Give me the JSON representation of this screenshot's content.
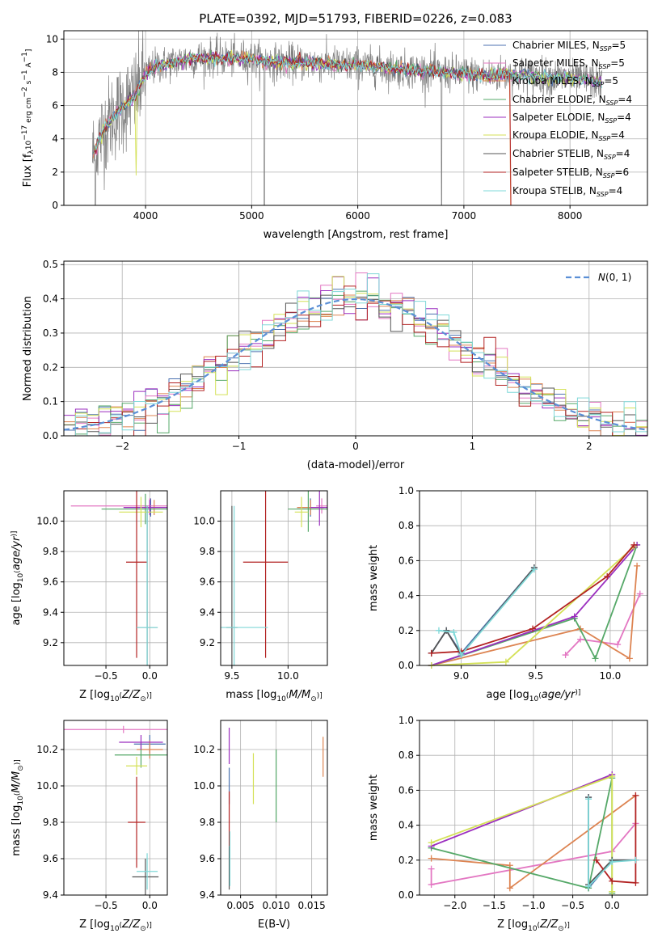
{
  "figure": {
    "title": "PLATE=0392, MJD=51793, FIBERID=0226, z=0.083"
  },
  "colors": {
    "chab_miles": "#4c72b0",
    "salp_miles": "#e377c2",
    "krou_miles": "#dd8452",
    "chab_elodie": "#55a868",
    "salp_elodie": "#9b2fbf",
    "krou_elodie": "#d4e157",
    "chab_stelib": "#555555",
    "salp_stelib": "#b22222",
    "krou_stelib": "#7fd8d8",
    "data": "#808080",
    "gauss": "#5b8fd6",
    "grid": "#b0b0b0"
  },
  "legend_spectrum": [
    "Chabrier MILES, N<sub>SSP</sub>=5",
    "Salpeter MILES, N<sub>SSP</sub>=5",
    "Kroupa MILES, N<sub>SSP</sub>=5",
    "Chabrier ELODIE, N<sub>SSP</sub>=4",
    "Salpeter ELODIE, N<sub>SSP</sub>=4",
    "Kroupa ELODIE, N<sub>SSP</sub>=4",
    "Chabrier STELIB, N<sub>SSP</sub>=4",
    "Salpeter STELIB, N<sub>SSP</sub>=6",
    "Kroupa STELIB, N<sub>SSP</sub>=4"
  ],
  "legend_labels": {
    "l0": "Chabrier MILES, N",
    "l1": "Salpeter MILES, N",
    "l2": "Kroupa MILES, N",
    "l3": "Chabrier ELODIE, N",
    "l4": "Salpeter ELODIE, N",
    "l5": "Kroupa ELODIE, N",
    "l6": "Chabrier STELIB, N",
    "l7": "Salpeter STELIB, N",
    "l8": "Kroupa STELIB, N",
    "sub": "SSP",
    "n0": "=5",
    "n1": "=5",
    "n2": "=5",
    "n3": "=4",
    "n4": "=4",
    "n5": "=4",
    "n6": "=4",
    "n7": "=6",
    "n8": "=4"
  },
  "chart_data": [
    {
      "id": "spectrum",
      "type": "line",
      "xlabel": "wavelength [Angstrom, rest frame]",
      "ylabel": "Flux [f_λ 10^-17 erg cm^-2 s^-1 A^-1]",
      "xlim": [
        3230,
        8730
      ],
      "ylim": [
        0,
        10.5
      ],
      "xticks": [
        4000,
        5000,
        6000,
        7000,
        8000
      ],
      "yticks": [
        0,
        2,
        4,
        6,
        8,
        10
      ],
      "continuum": [
        [
          3500,
          3.0
        ],
        [
          3600,
          4.5
        ],
        [
          3700,
          5.4
        ],
        [
          3800,
          6.0
        ],
        [
          3900,
          6.6
        ],
        [
          4000,
          7.9
        ],
        [
          4100,
          8.4
        ],
        [
          4200,
          8.5
        ],
        [
          4400,
          8.8
        ],
        [
          4600,
          8.9
        ],
        [
          4800,
          8.85
        ],
        [
          5000,
          8.8
        ],
        [
          5200,
          8.6
        ],
        [
          5400,
          8.6
        ],
        [
          5600,
          8.55
        ],
        [
          5800,
          8.45
        ],
        [
          6000,
          8.4
        ],
        [
          6200,
          8.3
        ],
        [
          6400,
          8.2
        ],
        [
          6600,
          8.1
        ],
        [
          6800,
          8.0
        ],
        [
          7000,
          7.9
        ],
        [
          7200,
          7.8
        ],
        [
          7400,
          7.9
        ],
        [
          7600,
          7.8
        ],
        [
          7800,
          7.7
        ],
        [
          8000,
          7.6
        ],
        [
          8200,
          7.5
        ],
        [
          8300,
          7.4
        ]
      ],
      "grid": true,
      "legend_placement": "upper right"
    },
    {
      "id": "residuals",
      "type": "histogram",
      "xlabel": "(data-model)/error",
      "ylabel": "Normed distribution",
      "xlim": [
        -2.5,
        2.5
      ],
      "ylim": [
        0,
        0.51
      ],
      "xticks": [
        -2,
        -1,
        0,
        1,
        2
      ],
      "yticks": [
        0.0,
        0.1,
        0.2,
        0.3,
        0.4,
        0.5
      ],
      "bin_width": 0.1,
      "series_name": "N(0,1)",
      "grid": true,
      "legend_placement": "upper right"
    },
    {
      "id": "age_vs_Z",
      "type": "errorbar",
      "xlabel": "Z [log10(Z/Z⊙)]",
      "ylabel": "age [log10(age/yr)]",
      "xlim": [
        -0.98,
        0.2
      ],
      "ylim": [
        9.05,
        10.2
      ],
      "xticks": [
        -0.5,
        0.0
      ],
      "yticks": [
        9.2,
        9.4,
        9.6,
        9.8,
        10.0
      ],
      "points": [
        {
          "key": "chab_miles",
          "x": 0.01,
          "y": 10.09,
          "xerr": 0.3,
          "yerr": 0.06
        },
        {
          "key": "salp_miles",
          "x": 0.0,
          "y": 10.1,
          "xerr": 0.9,
          "yerr": 0.05
        },
        {
          "key": "krou_miles",
          "x": 0.05,
          "y": 10.09,
          "xerr": 0.12,
          "yerr": 0.05
        },
        {
          "key": "chab_elodie",
          "x": -0.05,
          "y": 10.08,
          "xerr": 0.5,
          "yerr": 0.1
        },
        {
          "key": "salp_elodie",
          "x": 0.0,
          "y": 10.09,
          "xerr": 0.3,
          "yerr": 0.05
        },
        {
          "key": "krou_elodie",
          "x": -0.1,
          "y": 10.06,
          "xerr": 0.25,
          "yerr": 0.1
        },
        {
          "key": "chab_stelib",
          "x": -0.03,
          "y": 9.3,
          "xerr": 0.12,
          "yerr": 0.8
        },
        {
          "key": "salp_stelib",
          "x": -0.15,
          "y": 9.73,
          "xerr": 0.12,
          "yerr": 0.63
        },
        {
          "key": "krou_stelib",
          "x": -0.03,
          "y": 9.3,
          "xerr": 0.12,
          "yerr": 0.8
        }
      ],
      "grid": true
    },
    {
      "id": "age_vs_mass",
      "type": "errorbar",
      "xlabel": "mass [log10(M/M⊙)]",
      "ylabel": "",
      "xlim": [
        9.4,
        10.35
      ],
      "ylim": [
        9.05,
        10.2
      ],
      "xticks": [
        9.5,
        10.0
      ],
      "yticks": [
        9.2,
        9.4,
        9.6,
        9.8,
        10.0
      ],
      "points": [
        {
          "key": "chab_miles",
          "x": 10.2,
          "y": 10.09,
          "xerr": 0.12,
          "yerr": 0.06
        },
        {
          "key": "salp_miles",
          "x": 10.3,
          "y": 10.1,
          "xerr": 0.05,
          "yerr": 0.05
        },
        {
          "key": "krou_miles",
          "x": 10.2,
          "y": 10.09,
          "xerr": 0.12,
          "yerr": 0.05
        },
        {
          "key": "chab_elodie",
          "x": 10.18,
          "y": 10.08,
          "xerr": 0.18,
          "yerr": 0.15
        },
        {
          "key": "salp_elodie",
          "x": 10.28,
          "y": 10.09,
          "xerr": 0.08,
          "yerr": 0.12
        },
        {
          "key": "krou_elodie",
          "x": 10.12,
          "y": 10.06,
          "xerr": 0.06,
          "yerr": 0.1
        },
        {
          "key": "chab_stelib",
          "x": 9.5,
          "y": 9.3,
          "xerr": 0.05,
          "yerr": 0.8
        },
        {
          "key": "salp_stelib",
          "x": 9.8,
          "y": 9.73,
          "xerr": 0.2,
          "yerr": 0.63
        },
        {
          "key": "krou_stelib",
          "x": 9.52,
          "y": 9.3,
          "xerr": 0.3,
          "yerr": 0.8
        }
      ],
      "grid": true
    },
    {
      "id": "weight_vs_age",
      "type": "line",
      "xlabel": "age [log10(age/yr)]",
      "ylabel": "mass weight",
      "xlim": [
        8.72,
        10.25
      ],
      "ylim": [
        0,
        1.0
      ],
      "xticks": [
        9.0,
        9.5,
        10.0
      ],
      "yticks": [
        0.0,
        0.2,
        0.4,
        0.6,
        0.8,
        1.0
      ],
      "series": [
        {
          "key": "chab_miles",
          "points": [
            [
              8.8,
              0.07
            ],
            [
              8.9,
              0.2
            ],
            [
              9.0,
              0.07
            ],
            [
              9.49,
              0.56
            ]
          ]
        },
        {
          "key": "salp_miles",
          "points": [
            [
              9.7,
              0.06
            ],
            [
              9.8,
              0.15
            ],
            [
              10.05,
              0.12
            ],
            [
              10.2,
              0.41
            ]
          ]
        },
        {
          "key": "krou_miles",
          "points": [
            [
              8.8,
              0.0
            ],
            [
              9.8,
              0.21
            ],
            [
              10.13,
              0.04
            ],
            [
              10.18,
              0.57
            ]
          ]
        },
        {
          "key": "chab_elodie",
          "points": [
            [
              8.8,
              0.0
            ],
            [
              9.76,
              0.27
            ],
            [
              9.9,
              0.04
            ],
            [
              10.18,
              0.69
            ]
          ]
        },
        {
          "key": "salp_elodie",
          "points": [
            [
              8.8,
              0.0
            ],
            [
              9.76,
              0.28
            ],
            [
              10.18,
              0.69
            ]
          ]
        },
        {
          "key": "krou_elodie",
          "points": [
            [
              8.8,
              0.0
            ],
            [
              9.3,
              0.02
            ],
            [
              10.16,
              0.68
            ]
          ]
        },
        {
          "key": "chab_stelib",
          "points": [
            [
              8.8,
              0.07
            ],
            [
              8.9,
              0.2
            ],
            [
              9.0,
              0.06
            ],
            [
              9.49,
              0.56
            ]
          ]
        },
        {
          "key": "salp_stelib",
          "points": [
            [
              8.8,
              0.07
            ],
            [
              9.0,
              0.08
            ],
            [
              9.48,
              0.21
            ],
            [
              9.98,
              0.51
            ],
            [
              10.16,
              0.69
            ]
          ]
        },
        {
          "key": "krou_stelib",
          "points": [
            [
              8.85,
              0.2
            ],
            [
              8.95,
              0.19
            ],
            [
              9.0,
              0.06
            ],
            [
              9.49,
              0.55
            ]
          ]
        }
      ],
      "grid": true
    },
    {
      "id": "mass_vs_Z",
      "type": "errorbar",
      "xlabel": "Z [log10(Z/Z⊙)]",
      "ylabel": "mass [log10(M/M⊙)]",
      "xlim": [
        -0.98,
        0.2
      ],
      "ylim": [
        9.4,
        10.36
      ],
      "xticks": [
        -0.5,
        0.0
      ],
      "yticks": [
        9.4,
        9.6,
        9.8,
        10.0,
        10.2
      ],
      "points": [
        {
          "key": "chab_miles",
          "x": 0.0,
          "y": 10.23,
          "xerr": 0.18,
          "yerr": 0.05
        },
        {
          "key": "salp_miles",
          "x": -0.3,
          "y": 10.31,
          "xerr": 0.9,
          "yerr": 0.02
        },
        {
          "key": "krou_miles",
          "x": 0.0,
          "y": 10.2,
          "xerr": 0.15,
          "yerr": 0.05
        },
        {
          "key": "chab_elodie",
          "x": -0.1,
          "y": 10.17,
          "xerr": 0.3,
          "yerr": 0.07
        },
        {
          "key": "salp_elodie",
          "x": -0.1,
          "y": 10.24,
          "xerr": 0.25,
          "yerr": 0.04
        },
        {
          "key": "krou_elodie",
          "x": -0.15,
          "y": 10.11,
          "xerr": 0.12,
          "yerr": 0.05
        },
        {
          "key": "chab_stelib",
          "x": -0.05,
          "y": 9.5,
          "xerr": 0.15,
          "yerr": 0.1
        },
        {
          "key": "salp_stelib",
          "x": -0.15,
          "y": 9.8,
          "xerr": 0.1,
          "yerr": 0.25
        },
        {
          "key": "krou_stelib",
          "x": -0.03,
          "y": 9.53,
          "xerr": 0.12,
          "yerr": 0.1
        }
      ],
      "grid": true
    },
    {
      "id": "mass_vs_ebv",
      "type": "errorbar",
      "xlabel": "E(B-V)",
      "ylabel": "",
      "xlim": [
        0.0022,
        0.0172
      ],
      "ylim": [
        9.4,
        10.36
      ],
      "xticks": [
        0.005,
        0.01,
        0.015
      ],
      "yticks": [
        9.4,
        9.6,
        9.8,
        10.0,
        10.2
      ],
      "points": [
        {
          "key": "salp_elodie",
          "x": 0.0034,
          "y": 10.22,
          "xerr": 0,
          "yerr": 0.1
        },
        {
          "key": "chab_miles",
          "x": 0.0034,
          "y": 10.0,
          "xerr": 0,
          "yerr": 0.1
        },
        {
          "key": "salp_stelib",
          "x": 0.0034,
          "y": 9.82,
          "xerr": 0,
          "yerr": 0.15
        },
        {
          "key": "chab_stelib",
          "x": 0.0034,
          "y": 9.55,
          "xerr": 0,
          "yerr": 0.12
        },
        {
          "key": "krou_stelib",
          "x": 0.0035,
          "y": 9.6,
          "xerr": 0,
          "yerr": 0.15
        },
        {
          "key": "krou_elodie",
          "x": 0.0068,
          "y": 10.04,
          "xerr": 0,
          "yerr": 0.14
        },
        {
          "key": "chab_elodie",
          "x": 0.01,
          "y": 10.0,
          "xerr": 0,
          "yerr": 0.2
        },
        {
          "key": "krou_miles",
          "x": 0.0166,
          "y": 10.16,
          "xerr": 0,
          "yerr": 0.11
        }
      ],
      "grid": true
    },
    {
      "id": "weight_vs_Z",
      "type": "line",
      "xlabel": "Z [log10(Z/Z⊙)]",
      "ylabel": "mass weight",
      "xlim": [
        -2.45,
        0.45
      ],
      "ylim": [
        0,
        1.0
      ],
      "xticks": [
        -2.0,
        -1.5,
        -1.0,
        -0.5,
        0.0
      ],
      "yticks": [
        0.0,
        0.2,
        0.4,
        0.6,
        0.8,
        1.0
      ],
      "series": [
        {
          "key": "chab_miles",
          "points": [
            [
              -0.3,
              0.56
            ],
            [
              -0.3,
              0.04
            ],
            [
              0.0,
              0.2
            ],
            [
              0.3,
              0.2
            ]
          ]
        },
        {
          "key": "salp_miles",
          "points": [
            [
              -2.3,
              0.15
            ],
            [
              -2.3,
              0.06
            ],
            [
              0.0,
              0.25
            ],
            [
              0.3,
              0.41
            ]
          ]
        },
        {
          "key": "krou_miles",
          "points": [
            [
              -2.3,
              0.21
            ],
            [
              -1.3,
              0.17
            ],
            [
              -1.3,
              0.04
            ],
            [
              0.3,
              0.57
            ]
          ]
        },
        {
          "key": "chab_elodie",
          "points": [
            [
              -2.3,
              0.27
            ],
            [
              -0.3,
              0.04
            ],
            [
              0.0,
              0.67
            ],
            [
              0.0,
              0.01
            ]
          ]
        },
        {
          "key": "salp_elodie",
          "points": [
            [
              -2.3,
              0.28
            ],
            [
              0.0,
              0.69
            ]
          ]
        },
        {
          "key": "krou_elodie",
          "points": [
            [
              -2.3,
              0.3
            ],
            [
              0.0,
              0.68
            ],
            [
              0.0,
              0.02
            ]
          ]
        },
        {
          "key": "chab_stelib",
          "points": [
            [
              -0.3,
              0.56
            ],
            [
              -0.3,
              0.06
            ],
            [
              0.0,
              0.2
            ],
            [
              0.3,
              0.2
            ]
          ]
        },
        {
          "key": "salp_stelib",
          "points": [
            [
              -0.2,
              0.2
            ],
            [
              0.0,
              0.08
            ],
            [
              0.3,
              0.07
            ],
            [
              0.3,
              0.57
            ]
          ]
        },
        {
          "key": "krou_stelib",
          "points": [
            [
              -0.3,
              0.55
            ],
            [
              -0.3,
              0.05
            ],
            [
              0.0,
              0.19
            ],
            [
              0.3,
              0.2
            ]
          ]
        }
      ],
      "grid": true
    }
  ]
}
